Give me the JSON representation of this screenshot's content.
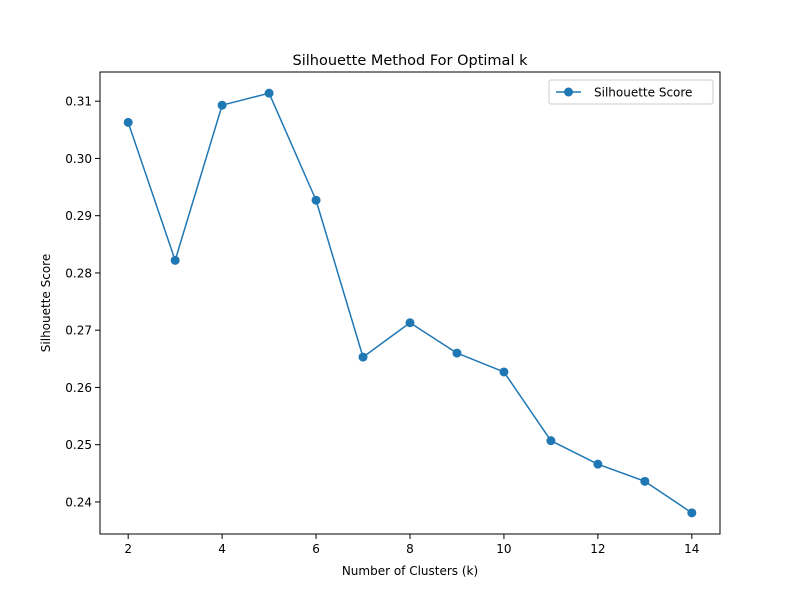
{
  "chart_data": {
    "type": "line",
    "title": "Silhouette Method For Optimal k",
    "xlabel": "Number of Clusters (k)",
    "ylabel": "Silhouette Score",
    "x": [
      2,
      3,
      4,
      5,
      6,
      7,
      8,
      9,
      10,
      11,
      12,
      13,
      14
    ],
    "series": [
      {
        "name": "Silhouette Score",
        "values": [
          0.3063,
          0.2822,
          0.3093,
          0.3114,
          0.2927,
          0.2653,
          0.2713,
          0.266,
          0.2627,
          0.2507,
          0.2466,
          0.2436,
          0.2381
        ],
        "color": "#1f77b4",
        "marker": "circle"
      }
    ],
    "xlim": [
      1.4,
      14.6
    ],
    "ylim": [
      0.2344,
      0.3151
    ],
    "xticks": [
      2,
      4,
      6,
      8,
      10,
      12,
      14
    ],
    "xtick_labels": [
      "2",
      "4",
      "6",
      "8",
      "10",
      "12",
      "14"
    ],
    "yticks": [
      0.24,
      0.25,
      0.26,
      0.27,
      0.28,
      0.29,
      0.3,
      0.31
    ],
    "ytick_labels": [
      "0.24",
      "0.25",
      "0.26",
      "0.27",
      "0.28",
      "0.29",
      "0.30",
      "0.31"
    ],
    "grid": false,
    "legend_position": "top-right"
  }
}
